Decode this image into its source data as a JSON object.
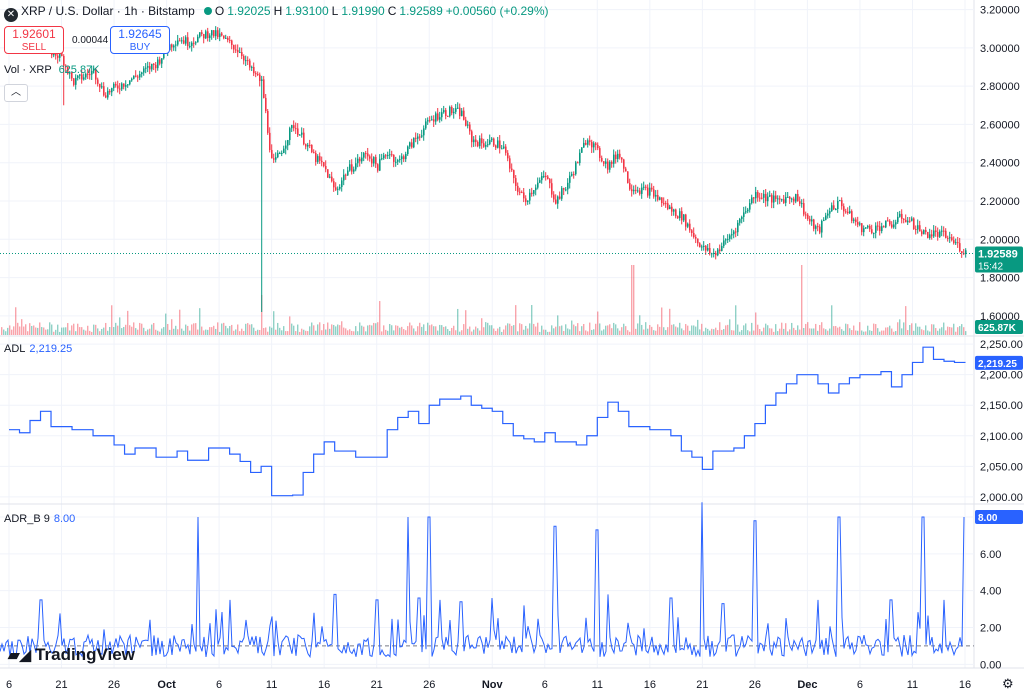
{
  "header": {
    "symbol_icon": "x-icon",
    "title": "XRP / U.S. Dollar · 1h · Bitstamp",
    "o_label": "O",
    "o_value": "1.92025",
    "h_label": "H",
    "h_value": "1.93100",
    "l_label": "L",
    "l_value": "1.91990",
    "c_label": "C",
    "c_value": "1.92589",
    "change": "+0.00560 (+0.29%)"
  },
  "trade": {
    "sell_price": "1.92601",
    "sell_label": "SELL",
    "spread": "0.00044",
    "buy_price": "1.92645",
    "buy_label": "BUY"
  },
  "volume": {
    "label": "Vol · XRP",
    "value": "625.87K"
  },
  "price_badge": {
    "price": "1.92589",
    "countdown": "15:42"
  },
  "colors": {
    "up": "#089981",
    "down": "#f23645",
    "line": "#2962ff",
    "text": "#131722",
    "grid": "#f0f3fa"
  },
  "branding": {
    "logo_text": "TradingView",
    "logo_icon": "tradingview-logo-icon"
  },
  "chart_data": [
    {
      "type": "candlestick",
      "title": "XRP / U.S. Dollar · 1h · Bitstamp",
      "ylim": [
        1.5,
        3.25
      ],
      "yticks": [
        "3.20000",
        "3.00000",
        "2.80000",
        "2.60000",
        "2.40000",
        "2.20000",
        "2.00000",
        "1.80000",
        "1.60000"
      ],
      "x_ticks": [
        "6",
        "21",
        "26",
        "Oct",
        "6",
        "11",
        "16",
        "21",
        "26",
        "Nov",
        "6",
        "11",
        "16",
        "21",
        "26",
        "Dec",
        "6",
        "11",
        "16"
      ],
      "x_tick_dates": [
        "2025-09-16",
        "2025-09-21",
        "2025-09-26",
        "2025-10-01",
        "2025-10-06",
        "2025-10-11",
        "2025-10-16",
        "2025-10-21",
        "2025-10-26",
        "2025-11-01",
        "2025-11-06",
        "2025-11-11",
        "2025-11-16",
        "2025-11-21",
        "2025-11-26",
        "2025-12-01",
        "2025-12-06",
        "2025-12-11",
        "2025-12-16"
      ],
      "x_range": [
        "2025-09-16",
        "2025-12-16"
      ],
      "close_series": [
        [
          "2025-09-16",
          3.02
        ],
        [
          "2025-09-18",
          3.08
        ],
        [
          "2025-09-20",
          2.98
        ],
        [
          "2025-09-21",
          2.95
        ],
        [
          "2025-09-22",
          2.82
        ],
        [
          "2025-09-24",
          2.88
        ],
        [
          "2025-09-25",
          2.76
        ],
        [
          "2025-09-26",
          2.79
        ],
        [
          "2025-09-28",
          2.85
        ],
        [
          "2025-09-30",
          2.92
        ],
        [
          "2025-10-01",
          3.0
        ],
        [
          "2025-10-02",
          3.05
        ],
        [
          "2025-10-03",
          3.03
        ],
        [
          "2025-10-05",
          3.08
        ],
        [
          "2025-10-06",
          3.06
        ],
        [
          "2025-10-08",
          2.98
        ],
        [
          "2025-10-09",
          2.88
        ],
        [
          "2025-10-10",
          2.82
        ],
        [
          "2025-10-11",
          2.38
        ],
        [
          "2025-10-12",
          2.48
        ],
        [
          "2025-10-13",
          2.6
        ],
        [
          "2025-10-14",
          2.52
        ],
        [
          "2025-10-15",
          2.43
        ],
        [
          "2025-10-16",
          2.37
        ],
        [
          "2025-10-17",
          2.25
        ],
        [
          "2025-10-18",
          2.35
        ],
        [
          "2025-10-19",
          2.4
        ],
        [
          "2025-10-20",
          2.45
        ],
        [
          "2025-10-21",
          2.38
        ],
        [
          "2025-10-22",
          2.46
        ],
        [
          "2025-10-23",
          2.4
        ],
        [
          "2025-10-24",
          2.48
        ],
        [
          "2025-10-25",
          2.55
        ],
        [
          "2025-10-26",
          2.62
        ],
        [
          "2025-10-27",
          2.66
        ],
        [
          "2025-10-28",
          2.67
        ],
        [
          "2025-10-29",
          2.66
        ],
        [
          "2025-10-30",
          2.52
        ],
        [
          "2025-10-31",
          2.5
        ],
        [
          "2025-11-01",
          2.51
        ],
        [
          "2025-11-02",
          2.48
        ],
        [
          "2025-11-03",
          2.3
        ],
        [
          "2025-11-04",
          2.2
        ],
        [
          "2025-11-05",
          2.28
        ],
        [
          "2025-11-06",
          2.33
        ],
        [
          "2025-11-07",
          2.2
        ],
        [
          "2025-11-08",
          2.28
        ],
        [
          "2025-11-09",
          2.4
        ],
        [
          "2025-11-10",
          2.54
        ],
        [
          "2025-11-11",
          2.45
        ],
        [
          "2025-11-12",
          2.38
        ],
        [
          "2025-11-13",
          2.46
        ],
        [
          "2025-11-14",
          2.28
        ],
        [
          "2025-11-15",
          2.26
        ],
        [
          "2025-11-16",
          2.25
        ],
        [
          "2025-11-17",
          2.2
        ],
        [
          "2025-11-18",
          2.15
        ],
        [
          "2025-11-19",
          2.12
        ],
        [
          "2025-11-20",
          2.03
        ],
        [
          "2025-11-21",
          1.95
        ],
        [
          "2025-11-22",
          1.92
        ],
        [
          "2025-11-23",
          1.98
        ],
        [
          "2025-11-24",
          2.05
        ],
        [
          "2025-11-25",
          2.15
        ],
        [
          "2025-11-26",
          2.24
        ],
        [
          "2025-11-27",
          2.22
        ],
        [
          "2025-11-28",
          2.2
        ],
        [
          "2025-11-29",
          2.22
        ],
        [
          "2025-11-30",
          2.22
        ],
        [
          "2025-12-01",
          2.1
        ],
        [
          "2025-12-02",
          2.04
        ],
        [
          "2025-12-03",
          2.16
        ],
        [
          "2025-12-04",
          2.19
        ],
        [
          "2025-12-05",
          2.12
        ],
        [
          "2025-12-06",
          2.06
        ],
        [
          "2025-12-07",
          2.05
        ],
        [
          "2025-12-08",
          2.07
        ],
        [
          "2025-12-09",
          2.08
        ],
        [
          "2025-12-10",
          2.12
        ],
        [
          "2025-12-11",
          2.08
        ],
        [
          "2025-12-12",
          2.03
        ],
        [
          "2025-12-13",
          2.03
        ],
        [
          "2025-12-14",
          2.02
        ],
        [
          "2025-12-15",
          1.98
        ],
        [
          "2025-12-16",
          1.93
        ]
      ],
      "last_price": 1.92589
    },
    {
      "type": "bar",
      "title": "Vol · XRP",
      "last_value": "625.87K"
    },
    {
      "type": "line",
      "title": "ADL",
      "value_label": "2,219.25",
      "ylim": [
        1990,
        2260
      ],
      "yticks": [
        "2,250.00",
        "2,200.00",
        "2,150.00",
        "2,100.00",
        "2,050.00",
        "2,000.00"
      ],
      "points": [
        [
          "2025-09-16",
          2110
        ],
        [
          "2025-09-17",
          2105
        ],
        [
          "2025-09-18",
          2125
        ],
        [
          "2025-09-19",
          2140
        ],
        [
          "2025-09-20",
          2115
        ],
        [
          "2025-09-22",
          2110
        ],
        [
          "2025-09-24",
          2100
        ],
        [
          "2025-09-26",
          2085
        ],
        [
          "2025-09-27",
          2070
        ],
        [
          "2025-09-28",
          2080
        ],
        [
          "2025-09-30",
          2065
        ],
        [
          "2025-10-02",
          2075
        ],
        [
          "2025-10-03",
          2060
        ],
        [
          "2025-10-05",
          2080
        ],
        [
          "2025-10-07",
          2070
        ],
        [
          "2025-10-08",
          2058
        ],
        [
          "2025-10-09",
          2040
        ],
        [
          "2025-10-10",
          2050
        ],
        [
          "2025-10-11",
          2002
        ],
        [
          "2025-10-13",
          2003
        ],
        [
          "2025-10-14",
          2040
        ],
        [
          "2025-10-15",
          2070
        ],
        [
          "2025-10-16",
          2090
        ],
        [
          "2025-10-17",
          2075
        ],
        [
          "2025-10-19",
          2065
        ],
        [
          "2025-10-21",
          2065
        ],
        [
          "2025-10-22",
          2110
        ],
        [
          "2025-10-23",
          2130
        ],
        [
          "2025-10-24",
          2140
        ],
        [
          "2025-10-25",
          2120
        ],
        [
          "2025-10-26",
          2150
        ],
        [
          "2025-10-27",
          2160
        ],
        [
          "2025-10-29",
          2165
        ],
        [
          "2025-10-30",
          2150
        ],
        [
          "2025-10-31",
          2145
        ],
        [
          "2025-11-01",
          2140
        ],
        [
          "2025-11-02",
          2120
        ],
        [
          "2025-11-03",
          2100
        ],
        [
          "2025-11-04",
          2095
        ],
        [
          "2025-11-05",
          2090
        ],
        [
          "2025-11-06",
          2105
        ],
        [
          "2025-11-07",
          2090
        ],
        [
          "2025-11-09",
          2085
        ],
        [
          "2025-11-10",
          2100
        ],
        [
          "2025-11-11",
          2130
        ],
        [
          "2025-11-12",
          2155
        ],
        [
          "2025-11-13",
          2140
        ],
        [
          "2025-11-14",
          2115
        ],
        [
          "2025-11-16",
          2110
        ],
        [
          "2025-11-18",
          2100
        ],
        [
          "2025-11-19",
          2075
        ],
        [
          "2025-11-20",
          2065
        ],
        [
          "2025-11-21",
          2045
        ],
        [
          "2025-11-22",
          2075
        ],
        [
          "2025-11-24",
          2080
        ],
        [
          "2025-11-25",
          2100
        ],
        [
          "2025-11-26",
          2120
        ],
        [
          "2025-11-27",
          2150
        ],
        [
          "2025-11-28",
          2170
        ],
        [
          "2025-11-29",
          2185
        ],
        [
          "2025-11-30",
          2200
        ],
        [
          "2025-12-01",
          2200
        ],
        [
          "2025-12-02",
          2185
        ],
        [
          "2025-12-03",
          2170
        ],
        [
          "2025-12-04",
          2185
        ],
        [
          "2025-12-05",
          2195
        ],
        [
          "2025-12-06",
          2200
        ],
        [
          "2025-12-07",
          2200
        ],
        [
          "2025-12-08",
          2205
        ],
        [
          "2025-12-09",
          2180
        ],
        [
          "2025-12-10",
          2200
        ],
        [
          "2025-12-11",
          2220
        ],
        [
          "2025-12-12",
          2245
        ],
        [
          "2025-12-13",
          2225
        ],
        [
          "2025-12-14",
          2222
        ],
        [
          "2025-12-15",
          2220
        ],
        [
          "2025-12-16",
          2219.25
        ]
      ]
    },
    {
      "type": "line",
      "title": "ADR_B 9",
      "value_label": "8.00",
      "ylim": [
        -0.2,
        8.6
      ],
      "yticks": [
        "8.00",
        "6.00",
        "4.00",
        "2.00",
        "0.00"
      ],
      "baseline": 1.0,
      "spikes": [
        [
          "2025-09-19",
          3.5
        ],
        [
          "2025-10-04",
          8.0
        ],
        [
          "2025-10-07",
          3.5
        ],
        [
          "2025-10-11",
          2.6
        ],
        [
          "2025-10-17",
          3.8
        ],
        [
          "2025-10-21",
          3.5
        ],
        [
          "2025-10-24",
          8.0
        ],
        [
          "2025-10-25",
          3.6
        ],
        [
          "2025-10-26",
          8.0
        ],
        [
          "2025-10-27",
          3.5
        ],
        [
          "2025-10-29",
          3.4
        ],
        [
          "2025-11-01",
          3.6
        ],
        [
          "2025-11-04",
          3.2
        ],
        [
          "2025-11-07",
          7.5
        ],
        [
          "2025-11-11",
          7.3
        ],
        [
          "2025-11-12",
          3.8
        ],
        [
          "2025-11-18",
          3.6
        ],
        [
          "2025-11-21",
          8.8
        ],
        [
          "2025-11-23",
          3.3
        ],
        [
          "2025-11-26",
          7.8
        ],
        [
          "2025-12-02",
          3.5
        ],
        [
          "2025-12-04",
          8.0
        ],
        [
          "2025-12-09",
          3.5
        ],
        [
          "2025-12-12",
          8.0
        ],
        [
          "2025-12-14",
          3.5
        ],
        [
          "2025-12-16",
          8.0
        ]
      ]
    }
  ]
}
